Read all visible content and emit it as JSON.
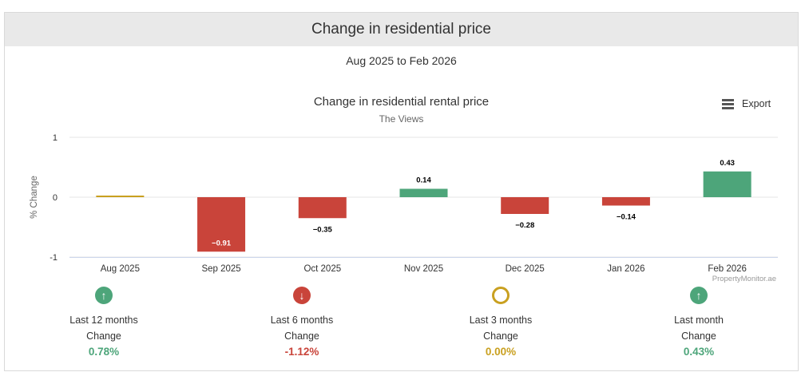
{
  "header": {
    "title": "Change in residential price"
  },
  "period": "Aug 2025 to Feb 2026",
  "export_label": "Export",
  "colors": {
    "positive": "#4da57a",
    "negative": "#c9443a",
    "neutral": "#c9a020"
  },
  "chart_data": {
    "type": "bar",
    "title": "Change in residential rental price",
    "subtitle": "The Views",
    "ylabel": "% Change",
    "xlabel": "",
    "categories": [
      "Aug 2025",
      "Sep 2025",
      "Oct 2025",
      "Nov 2025",
      "Dec 2025",
      "Jan 2026",
      "Feb 2026"
    ],
    "values": [
      0,
      -0.91,
      -0.35,
      0.14,
      -0.28,
      -0.14,
      0.43
    ],
    "data_labels": [
      "",
      "-0.91",
      "-0.35",
      "0.14",
      "-0.28",
      "-0.14",
      "0.43"
    ],
    "yticks": [
      "1",
      "0",
      "-1"
    ],
    "ylim": [
      -1,
      1
    ],
    "grid": true,
    "credit": "PropertyMonitor.ae"
  },
  "stats": [
    {
      "label": "Last 12 months",
      "sub": "Change",
      "value": "0.78%",
      "trend": "up",
      "icon": "arrow-up-icon"
    },
    {
      "label": "Last 6 months",
      "sub": "Change",
      "value": "-1.12%",
      "trend": "down",
      "icon": "arrow-down-icon"
    },
    {
      "label": "Last 3 months",
      "sub": "Change",
      "value": "0.00%",
      "trend": "flat",
      "icon": "ring-icon"
    },
    {
      "label": "Last month",
      "sub": "Change",
      "value": "0.43%",
      "trend": "up",
      "icon": "arrow-up-icon"
    }
  ]
}
